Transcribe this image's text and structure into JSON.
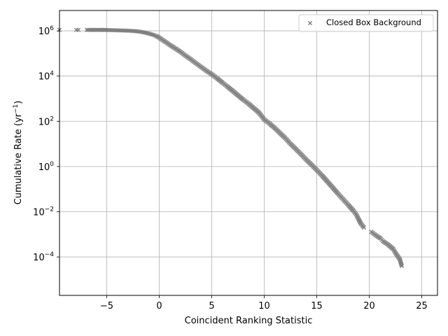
{
  "chart_data": {
    "type": "scatter",
    "xlabel": "Coincident Ranking Statistic",
    "ylabel": "Cumulative Rate (yr",
    "ylabel_sup": "−1",
    "ylabel_close": ")",
    "xlim": [
      -9.5,
      26.5
    ],
    "ylim_log10": [
      -5.7,
      6.9
    ],
    "y_scale": "log",
    "grid": true,
    "legend_position": "top-right",
    "x_ticks": [
      -5,
      0,
      5,
      10,
      15,
      20,
      25
    ],
    "x_tick_labels": [
      "−5",
      "0",
      "5",
      "10",
      "15",
      "20",
      "25"
    ],
    "y_ticks_exp": [
      6,
      4,
      2,
      0,
      -2,
      -4
    ],
    "y_tick_base": "10",
    "y_tick_exp_labels": [
      "6",
      "4",
      "2",
      "0",
      "−2",
      "−4"
    ],
    "series": [
      {
        "name": "Closed Box Background",
        "marker": "x",
        "color": "#7f7f7f",
        "points": [
          [
            -9.5,
            1100000.0
          ],
          [
            -7.9,
            1100000.0
          ],
          [
            -7.7,
            1100000.0
          ],
          [
            -6.9,
            1100000.0
          ],
          [
            -6.6,
            1100000.0
          ],
          [
            -6.1,
            1100000.0
          ],
          [
            -5.7,
            1100000.0
          ],
          [
            -5.2,
            1100000.0
          ],
          [
            -4.8,
            1080000.0
          ],
          [
            -4.5,
            1070000.0
          ],
          [
            -4.2,
            1060000.0
          ],
          [
            -3.9,
            1050000.0
          ],
          [
            -3.6,
            1040000.0
          ],
          [
            -3.3,
            1030000.0
          ],
          [
            -3.0,
            1020000.0
          ],
          [
            -2.7,
            1000000.0
          ],
          [
            -2.4,
            980000.0
          ],
          [
            -2.1,
            950000.0
          ],
          [
            -1.8,
            910000.0
          ],
          [
            -1.5,
            860000.0
          ],
          [
            -1.2,
            800000.0
          ],
          [
            -0.9,
            740000.0
          ],
          [
            -0.6,
            670000.0
          ],
          [
            -0.3,
            600000.0
          ],
          [
            0.0,
            500000.0
          ],
          [
            0.3,
            400000.0
          ],
          [
            0.7,
            300000.0
          ],
          [
            1.0,
            240000.0
          ],
          [
            1.5,
            170000.0
          ],
          [
            2.0,
            120000.0
          ],
          [
            2.5,
            80000.0
          ],
          [
            3.0,
            55000.0
          ],
          [
            3.5,
            37000.0
          ],
          [
            4.0,
            25000.0
          ],
          [
            4.5,
            17000.0
          ],
          [
            5.0,
            12000.0
          ],
          [
            5.5,
            8000.0
          ],
          [
            6.0,
            5200.0
          ],
          [
            6.5,
            3400.0
          ],
          [
            7.0,
            2200.0
          ],
          [
            7.5,
            1400.0
          ],
          [
            8.0,
            900
          ],
          [
            8.5,
            600
          ],
          [
            9.0,
            380
          ],
          [
            9.5,
            240
          ],
          [
            10.0,
            120
          ],
          [
            10.5,
            80
          ],
          [
            11.0,
            50
          ],
          [
            11.5,
            30
          ],
          [
            12.0,
            18
          ],
          [
            12.5,
            10
          ],
          [
            13.0,
            6
          ],
          [
            13.5,
            3.5
          ],
          [
            14.0,
            2.0
          ],
          [
            14.5,
            1.2
          ],
          [
            15.0,
            0.7
          ],
          [
            15.5,
            0.4
          ],
          [
            16.0,
            0.22
          ],
          [
            16.5,
            0.12
          ],
          [
            17.0,
            0.065
          ],
          [
            17.5,
            0.036
          ],
          [
            18.0,
            0.02
          ],
          [
            18.5,
            0.011
          ],
          [
            18.8,
            0.007
          ],
          [
            19.0,
            0.0045
          ],
          [
            19.2,
            0.003
          ],
          [
            19.5,
            0.002
          ],
          [
            20.2,
            0.0013
          ],
          [
            20.5,
            0.001
          ],
          [
            20.8,
            0.0008
          ],
          [
            21.1,
            0.00065
          ],
          [
            21.3,
            0.0005
          ],
          [
            21.8,
            0.00035
          ],
          [
            22.3,
            0.00022
          ],
          [
            22.5,
            0.00015
          ],
          [
            22.9,
            8e-05
          ],
          [
            23.1,
            4e-05
          ]
        ]
      }
    ]
  }
}
